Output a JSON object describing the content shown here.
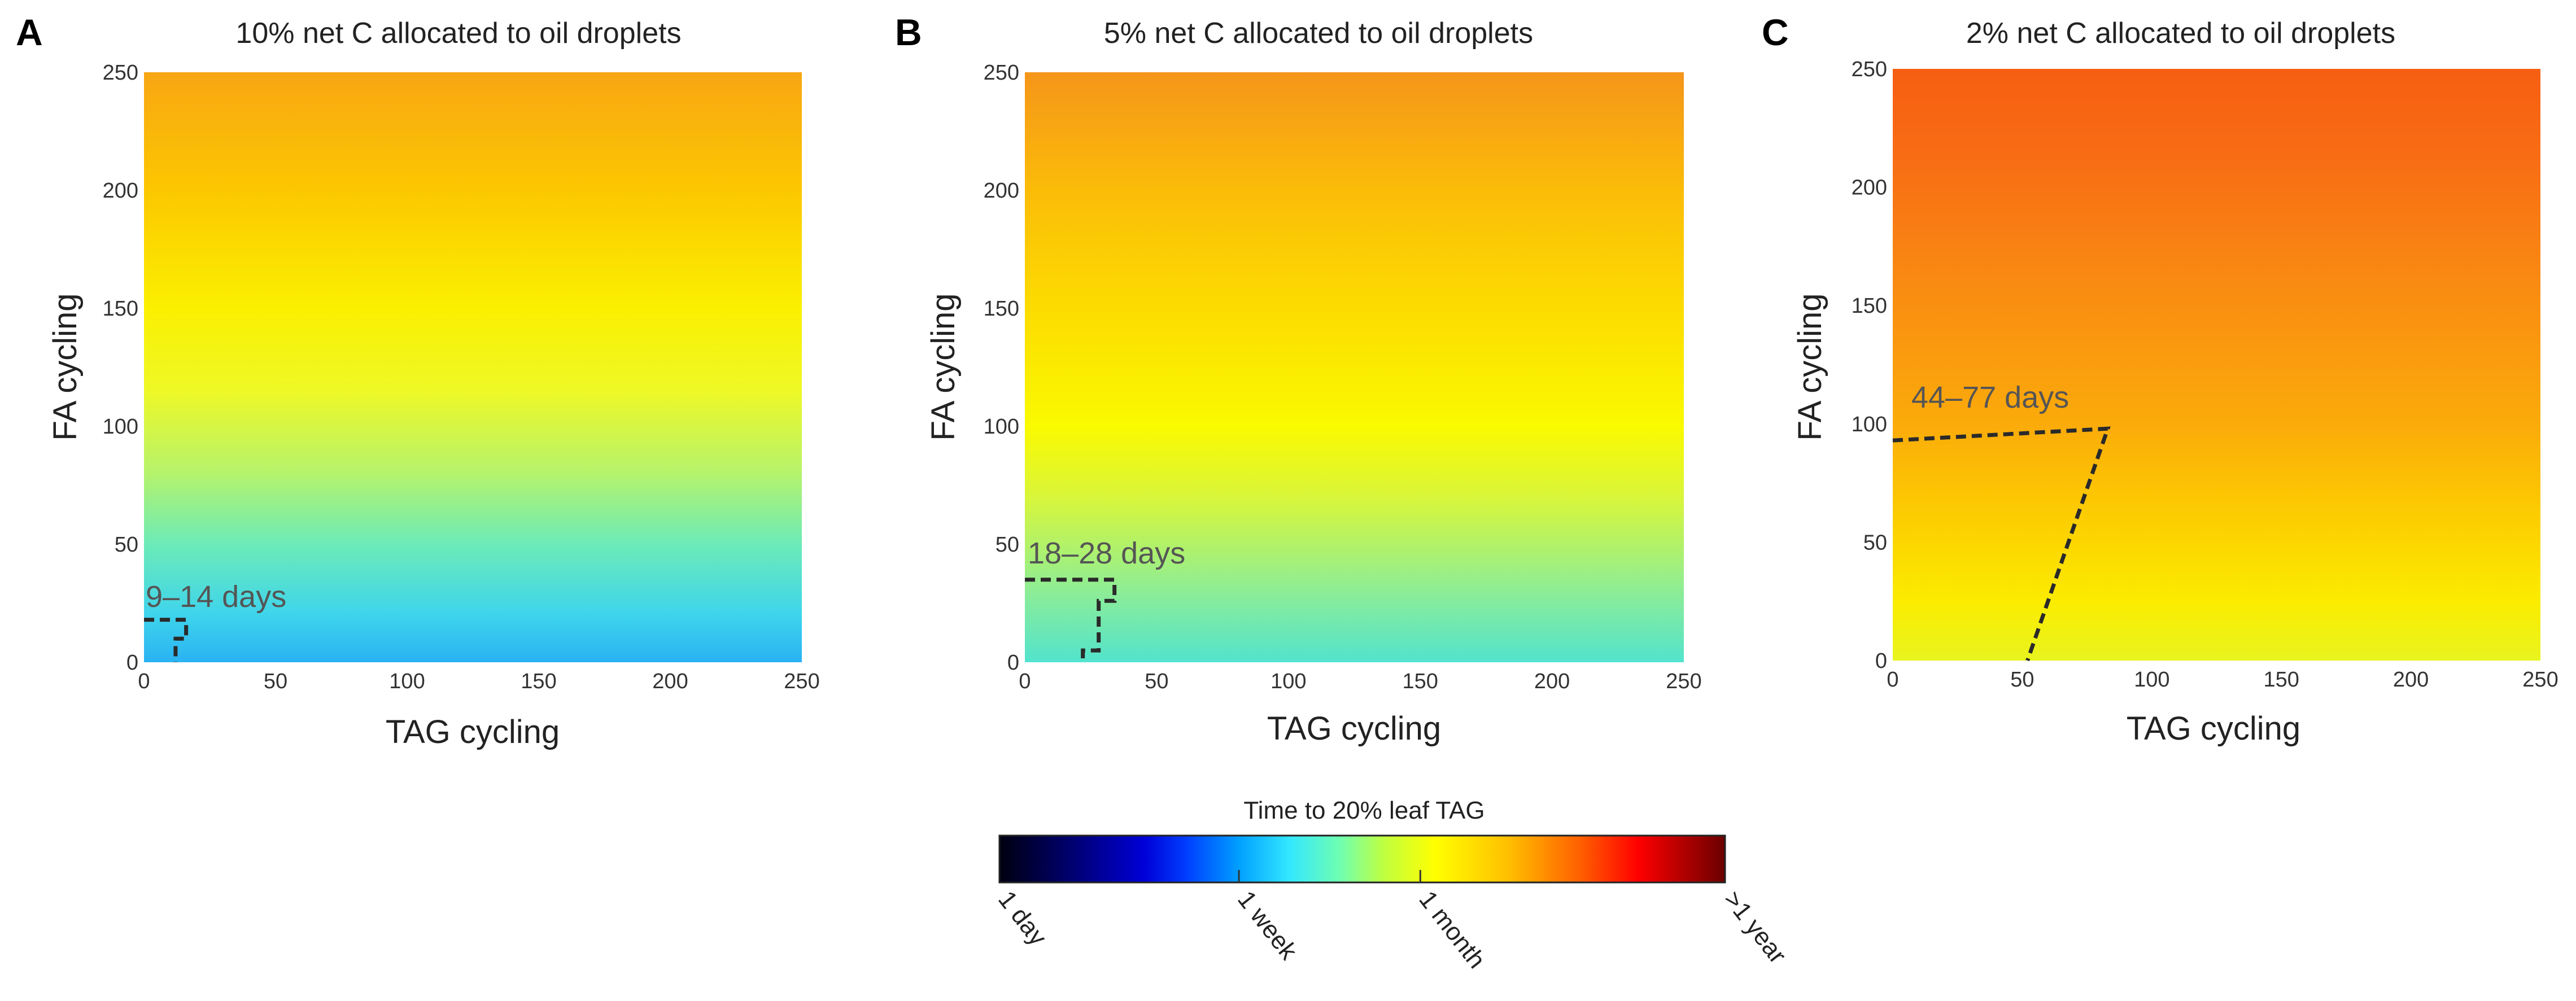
{
  "chart_data": [
    {
      "type": "heatmap",
      "panel": "A",
      "title": "10% net C allocated to oil droplets",
      "xlabel": "TAG cycling",
      "ylabel": "FA cycling",
      "xlim": [
        0,
        250
      ],
      "ylim": [
        0,
        250
      ],
      "xticks": [
        0,
        50,
        100,
        150,
        200,
        250
      ],
      "yticks": [
        0,
        50,
        100,
        150,
        200,
        250
      ],
      "y_profile": [
        {
          "fa": 0,
          "color": "#2ab2f2"
        },
        {
          "fa": 20,
          "color": "#3ed4ec"
        },
        {
          "fa": 50,
          "color": "#6cebb8"
        },
        {
          "fa": 80,
          "color": "#b5f36c"
        },
        {
          "fa": 115,
          "color": "#eef826"
        },
        {
          "fa": 150,
          "color": "#fbf000"
        },
        {
          "fa": 200,
          "color": "#fcc700"
        },
        {
          "fa": 250,
          "color": "#f8a613"
        }
      ],
      "annotation": {
        "label": "9–14 days",
        "boundary": [
          [
            0,
            18
          ],
          [
            16,
            18
          ],
          [
            16,
            10
          ],
          [
            12,
            10
          ],
          [
            12,
            0
          ]
        ]
      }
    },
    {
      "type": "heatmap",
      "panel": "B",
      "title": "5% net C allocated to oil droplets",
      "xlabel": "TAG cycling",
      "ylabel": "FA cycling",
      "xlim": [
        0,
        250
      ],
      "ylim": [
        0,
        250
      ],
      "xticks": [
        0,
        50,
        100,
        150,
        200,
        250
      ],
      "yticks": [
        0,
        50,
        100,
        150,
        200,
        250
      ],
      "y_profile": [
        {
          "fa": 0,
          "color": "#52e3cd"
        },
        {
          "fa": 30,
          "color": "#8ded96"
        },
        {
          "fa": 70,
          "color": "#d9f63a"
        },
        {
          "fa": 100,
          "color": "#fafa00"
        },
        {
          "fa": 150,
          "color": "#fcdc00"
        },
        {
          "fa": 200,
          "color": "#fbbc08"
        },
        {
          "fa": 250,
          "color": "#f5951a"
        }
      ],
      "annotation": {
        "label": "18–28 days",
        "boundary": [
          [
            0,
            35
          ],
          [
            34,
            35
          ],
          [
            34,
            26
          ],
          [
            28,
            26
          ],
          [
            28,
            5
          ],
          [
            22,
            5
          ],
          [
            22,
            0
          ]
        ]
      }
    },
    {
      "type": "heatmap",
      "panel": "C",
      "title": "2% net C allocated to oil droplets",
      "xlabel": "TAG cycling",
      "ylabel": "FA cycling",
      "xlim": [
        0,
        250
      ],
      "ylim": [
        0,
        250
      ],
      "xticks": [
        0,
        50,
        100,
        150,
        200,
        250
      ],
      "yticks": [
        0,
        50,
        100,
        150,
        200,
        250
      ],
      "y_profile": [
        {
          "fa": 0,
          "color": "#e8f41e"
        },
        {
          "fa": 25,
          "color": "#fbec00"
        },
        {
          "fa": 60,
          "color": "#fcce00"
        },
        {
          "fa": 100,
          "color": "#fbab0a"
        },
        {
          "fa": 160,
          "color": "#f98a12"
        },
        {
          "fa": 210,
          "color": "#f86e14"
        },
        {
          "fa": 250,
          "color": "#f65e12"
        }
      ],
      "annotation": {
        "label": "44–77 days",
        "boundary": [
          [
            0,
            93
          ],
          [
            83,
            98
          ],
          [
            52,
            0
          ]
        ]
      }
    }
  ],
  "colorbar": {
    "title": "Time to 20% leaf TAG",
    "stops": [
      {
        "pos": 0.0,
        "color": "#000010"
      },
      {
        "pos": 0.1,
        "color": "#000070"
      },
      {
        "pos": 0.2,
        "color": "#0000d8"
      },
      {
        "pos": 0.26,
        "color": "#0040ff"
      },
      {
        "pos": 0.33,
        "color": "#00a0ff"
      },
      {
        "pos": 0.4,
        "color": "#33e8ff"
      },
      {
        "pos": 0.47,
        "color": "#70ffb0"
      },
      {
        "pos": 0.53,
        "color": "#c0ff40"
      },
      {
        "pos": 0.6,
        "color": "#ffff00"
      },
      {
        "pos": 0.7,
        "color": "#ffc000"
      },
      {
        "pos": 0.8,
        "color": "#ff6000"
      },
      {
        "pos": 0.88,
        "color": "#ff0000"
      },
      {
        "pos": 1.0,
        "color": "#6a0000"
      }
    ],
    "ticks": [
      {
        "label": "1 day",
        "pos": 0.0
      },
      {
        "label": "1 week",
        "pos": 0.33
      },
      {
        "label": "1 month",
        "pos": 0.58
      },
      {
        "label": ">1 year",
        "pos": 1.0
      }
    ]
  }
}
